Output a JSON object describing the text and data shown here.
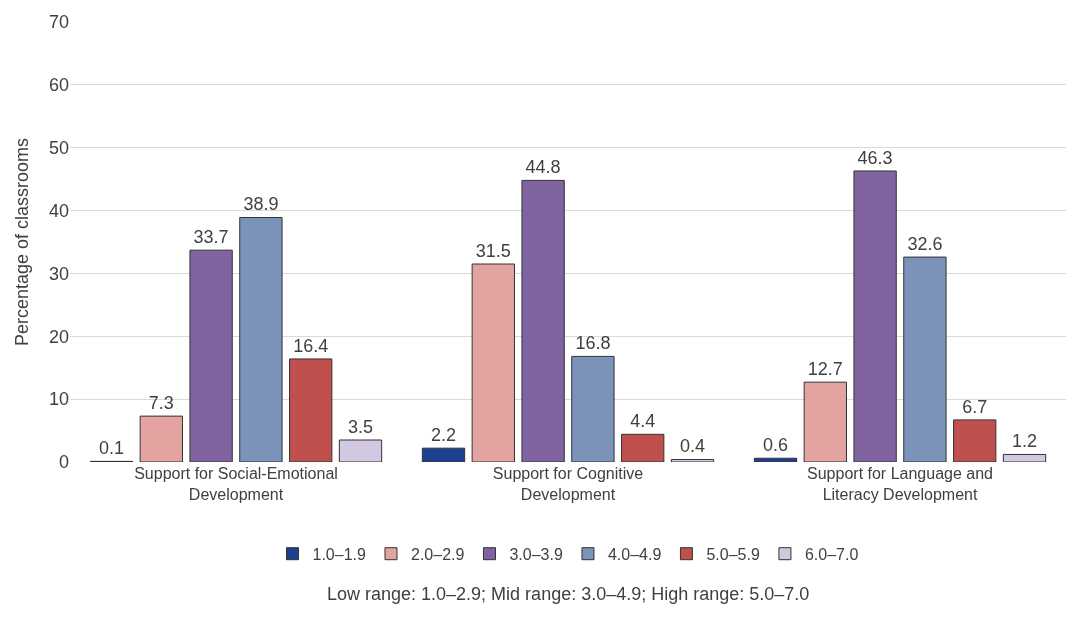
{
  "chart_data": {
    "type": "bar",
    "ylabel": "Percentage of classrooms",
    "categories": [
      "Support for Social-Emotional Development",
      "Support for Cognitive Development",
      "Support for Language and Literacy Development"
    ],
    "series": [
      {
        "name": "1.0–1.9",
        "color": "#1f3f8f",
        "values": [
          0.1,
          2.2,
          0.6
        ]
      },
      {
        "name": "2.0–2.9",
        "color": "#e3a3a1",
        "values": [
          7.3,
          31.5,
          12.7
        ]
      },
      {
        "name": "3.0–3.9",
        "color": "#8064a2",
        "values": [
          33.7,
          44.8,
          46.3
        ]
      },
      {
        "name": "4.0–4.9",
        "color": "#7b93b8",
        "values": [
          38.9,
          16.8,
          32.6
        ]
      },
      {
        "name": "5.0–5.9",
        "color": "#c0504d",
        "values": [
          16.4,
          4.4,
          6.7
        ]
      },
      {
        "name": "6.0–7.0",
        "color": "#d3c8e2",
        "values": [
          3.5,
          0.4,
          1.2
        ]
      }
    ],
    "ylim": [
      0,
      70
    ],
    "yticks": [
      0,
      10,
      20,
      30,
      40,
      50,
      60,
      70
    ],
    "grid": "y",
    "legend": "bottom",
    "data_labels": true,
    "annotations": [
      "Low range: 1.0–2.9; Mid range: 3.0–4.9; High range: 5.0–7.0"
    ]
  }
}
